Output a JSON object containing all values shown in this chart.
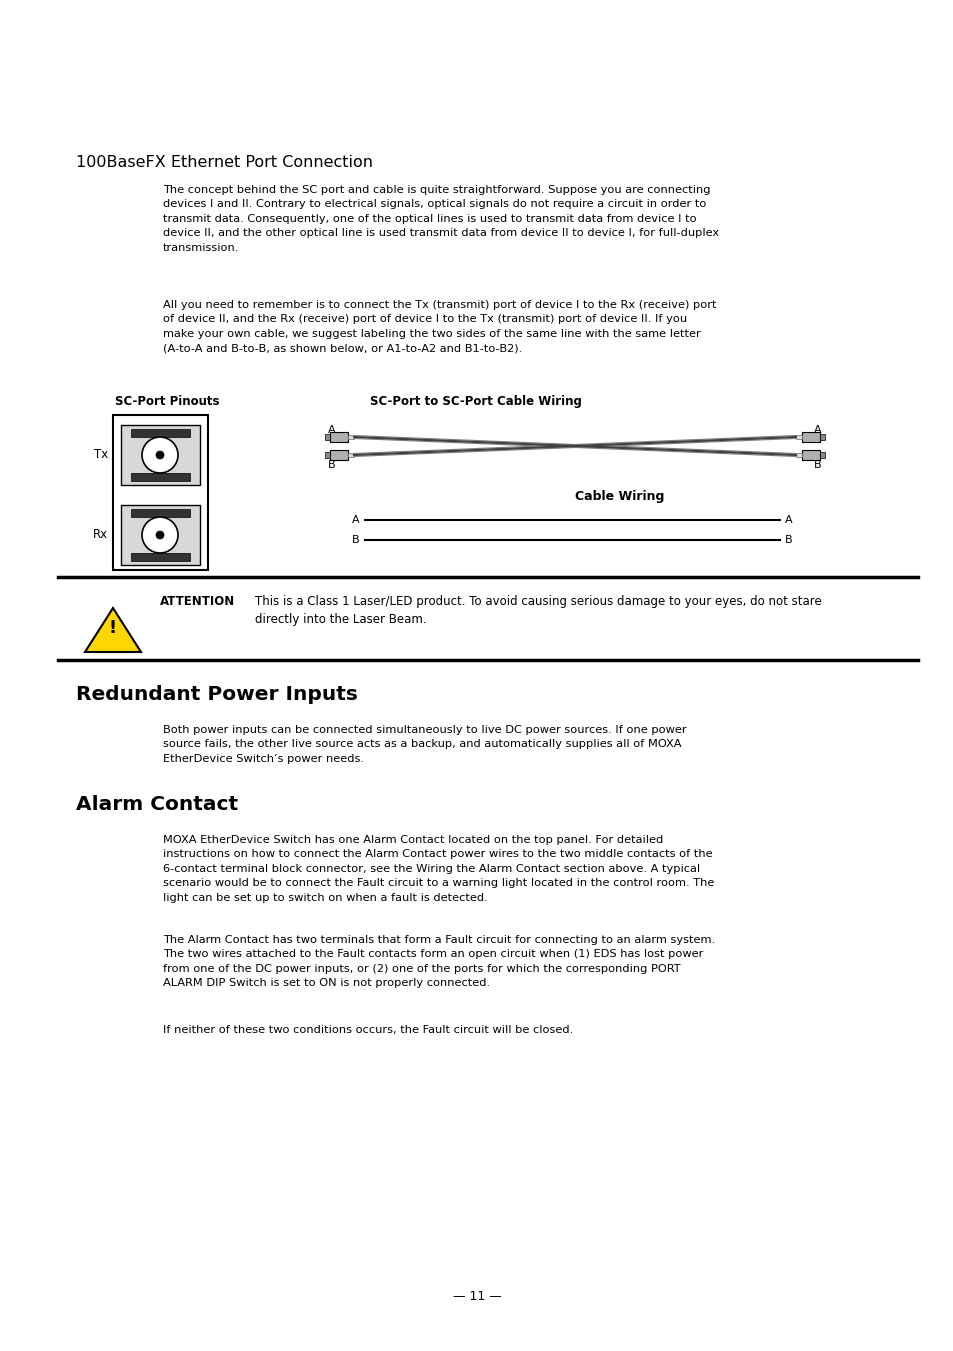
{
  "bg_color": "#ffffff",
  "title_100base": "100BaseFX Ethernet Port Connection",
  "para1": "The concept behind the SC port and cable is quite straightforward. Suppose you are connecting\ndevices I and II. Contrary to electrical signals, optical signals do not require a circuit in order to\ntransmit data. Consequently, one of the optical lines is used to transmit data from device I to\ndevice II, and the other optical line is used transmit data from device II to device I, for full-duplex\ntransmission.",
  "para2": "All you need to remember is to connect the Tx (transmit) port of device I to the Rx (receive) port\nof device II, and the Rx (receive) port of device I to the Tx (transmit) port of device II. If you\nmake your own cable, we suggest labeling the two sides of the same line with the same letter\n(A-to-A and B-to-B, as shown below, or A1-to-A2 and B1-to-B2).",
  "sc_port_label": "SC-Port Pinouts",
  "sc_port_cable_label": "SC-Port to SC-Port Cable Wiring",
  "cable_wiring_label": "Cable Wiring",
  "tx_label": "Tx",
  "rx_label": "Rx",
  "attention_label": "ATTENTION",
  "attention_text": "This is a Class 1 Laser/LED product. To avoid causing serious damage to your eyes, do not stare\ndirectly into the Laser Beam.",
  "section1_title": "Redundant Power Inputs",
  "section1_para": "Both power inputs can be connected simultaneously to live DC power sources. If one power\nsource fails, the other live source acts as a backup, and automatically supplies all of MOXA\nEtherDevice Switch’s power needs.",
  "section2_title": "Alarm Contact",
  "section2_para1": "MOXA EtherDevice Switch has one Alarm Contact located on the top panel. For detailed\ninstructions on how to connect the Alarm Contact power wires to the two middle contacts of the\n6-contact terminal block connector, see the Wiring the Alarm Contact section above. A typical\nscenario would be to connect the Fault circuit to a warning light located in the control room. The\nlight can be set up to switch on when a fault is detected.",
  "section2_para2": "The Alarm Contact has two terminals that form a Fault circuit for connecting to an alarm system.\nThe two wires attached to the Fault contacts form an open circuit when (1) EDS has lost power\nfrom one of the DC power inputs, or (2) one of the ports for which the corresponding PORT\nALARM DIP Switch is set to ON is not properly connected.",
  "section2_para3": "If neither of these two conditions occurs, the Fault circuit will be closed.",
  "page_number": "— 11 —"
}
